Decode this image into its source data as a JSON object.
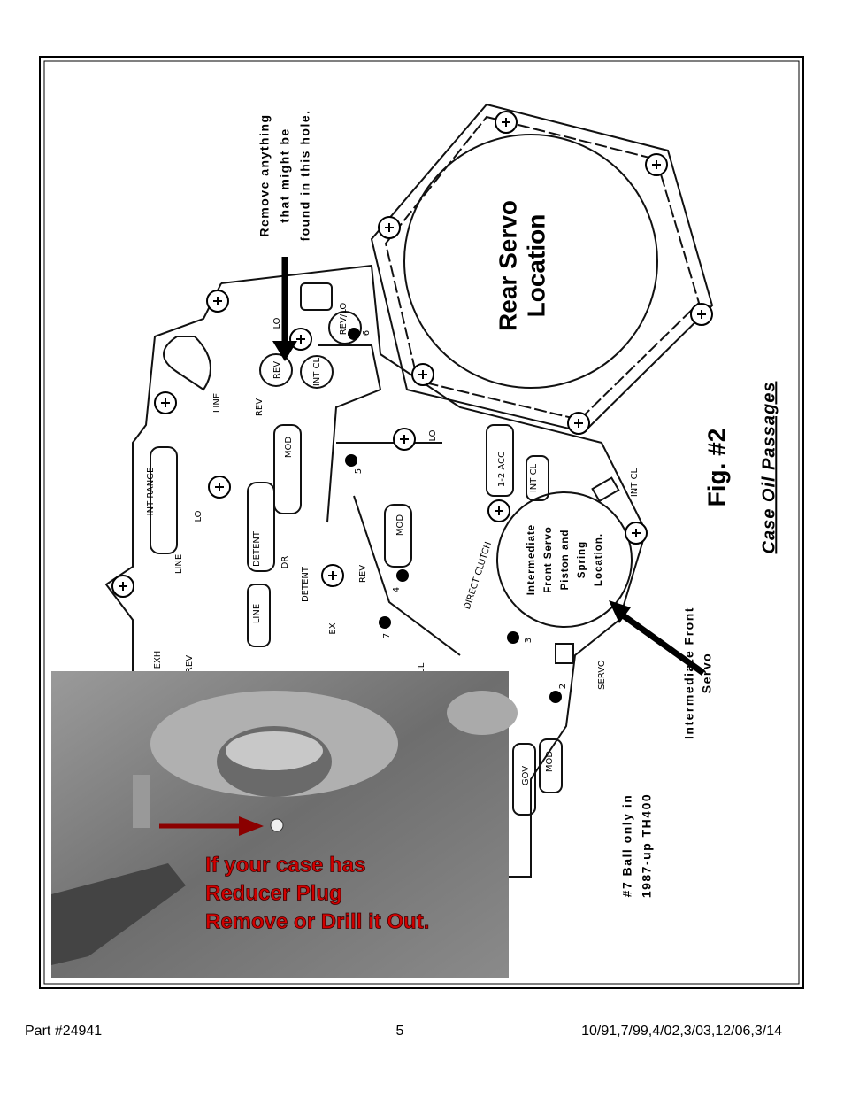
{
  "callouts": {
    "hole": [
      "Remove anything",
      "that might be",
      "found in this hole."
    ],
    "rear_servo": [
      "Rear Servo",
      "Location"
    ],
    "figure": "Fig. #2",
    "caption": "Case Oil Passages",
    "int_servo_location": [
      "Intermediate",
      "Front Servo",
      "Piston and",
      "Spring",
      "Location."
    ],
    "int_front_servo": [
      "Intermediate Front",
      "Servo"
    ],
    "ball_note": [
      "#7 Ball only in",
      "1987-up TH400"
    ]
  },
  "labels": [
    "LO",
    "REV/LO",
    "6",
    "REV",
    "INT CL",
    "LINE",
    "REV",
    "MOD",
    "5",
    "LO",
    "1-2 ACC",
    "INT CL",
    "INT CL",
    "INT RANGE",
    "LO",
    "LINE",
    "DETENT",
    "DR",
    "DETENT",
    "REV",
    "MOD",
    "4",
    "DIRECT CLUTCH",
    "LINE",
    "EX",
    "7",
    "3",
    "EXH",
    "REV",
    "SERVO",
    "2",
    "GOV",
    "MOD",
    "CL"
  ],
  "photo": {
    "text": [
      "If your case has",
      "Reducer Plug",
      "Remove or Drill it Out."
    ]
  },
  "footer": {
    "part": "Part #24941",
    "page": "5",
    "revisions": "10/91,7/99,4/02,3/03,12/06,3/14"
  }
}
